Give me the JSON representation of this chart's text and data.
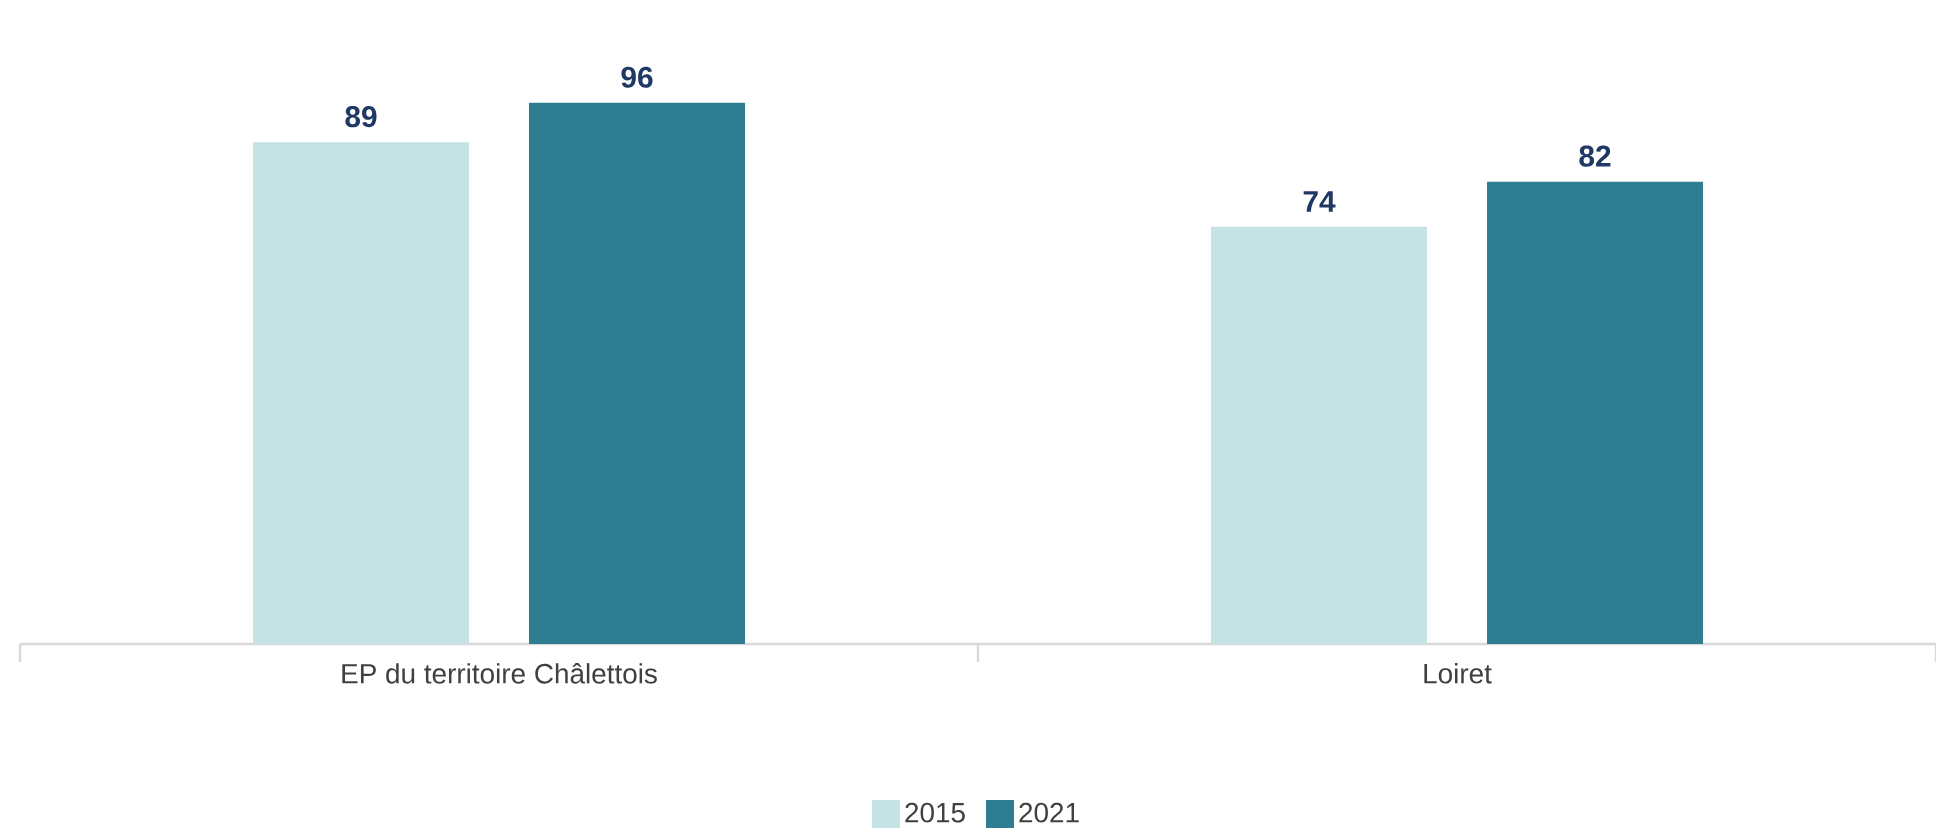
{
  "chart_data": {
    "type": "bar",
    "categories": [
      "EP du territoire Châlettois",
      "Loiret"
    ],
    "series": [
      {
        "name": "2015",
        "color": "#c5e2e5",
        "values": [
          89,
          74
        ]
      },
      {
        "name": "2021",
        "color": "#2e7d90",
        "values": [
          96,
          82
        ]
      }
    ],
    "tick_labels": "x",
    "data_labels": true,
    "legend": "bottom"
  }
}
